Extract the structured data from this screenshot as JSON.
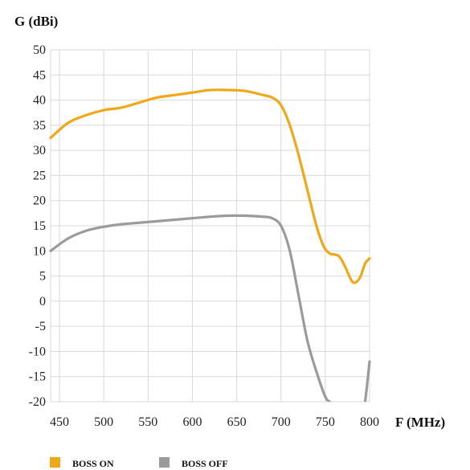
{
  "chart_data": {
    "type": "line",
    "title": "",
    "ylabel": "G (dBi)",
    "xlabel": "F (MHz)",
    "xlim": [
      440,
      800
    ],
    "ylim": [
      -20,
      50
    ],
    "xticks": [
      450,
      500,
      550,
      600,
      650,
      700,
      750,
      800
    ],
    "yticks": [
      50,
      45,
      40,
      35,
      30,
      25,
      20,
      15,
      10,
      5,
      0,
      -5,
      -10,
      -15,
      -20
    ],
    "grid": true,
    "legend_position": "bottom-left",
    "series": [
      {
        "name": "BOSS ON",
        "color": "#F0A818",
        "x": [
          440,
          460,
          480,
          500,
          520,
          540,
          560,
          580,
          600,
          620,
          640,
          660,
          680,
          690,
          700,
          710,
          720,
          730,
          740,
          748,
          755,
          765,
          772,
          780,
          785,
          790,
          795,
          800
        ],
        "y": [
          32.5,
          35.5,
          37,
          38,
          38.5,
          39.5,
          40.5,
          41,
          41.5,
          42,
          42,
          41.8,
          41,
          40.5,
          39,
          35,
          29,
          22,
          15,
          11,
          9.5,
          9,
          7,
          4,
          3.8,
          5,
          7.5,
          8.5
        ]
      },
      {
        "name": "BOSS OFF",
        "color": "#9B9B9B",
        "x": [
          440,
          460,
          480,
          500,
          520,
          540,
          560,
          580,
          600,
          620,
          640,
          660,
          680,
          690,
          700,
          710,
          720,
          730,
          740,
          750,
          755
        ],
        "y": [
          10,
          12.5,
          14,
          14.8,
          15.3,
          15.6,
          15.9,
          16.2,
          16.5,
          16.8,
          17,
          17,
          16.8,
          16.5,
          15,
          10,
          1,
          -8,
          -14,
          -19,
          -20
        ]
      },
      {
        "name": "",
        "color": "#9B9B9B",
        "x": [
          795,
          797,
          800
        ],
        "y": [
          -20,
          -17,
          -12
        ]
      }
    ]
  }
}
